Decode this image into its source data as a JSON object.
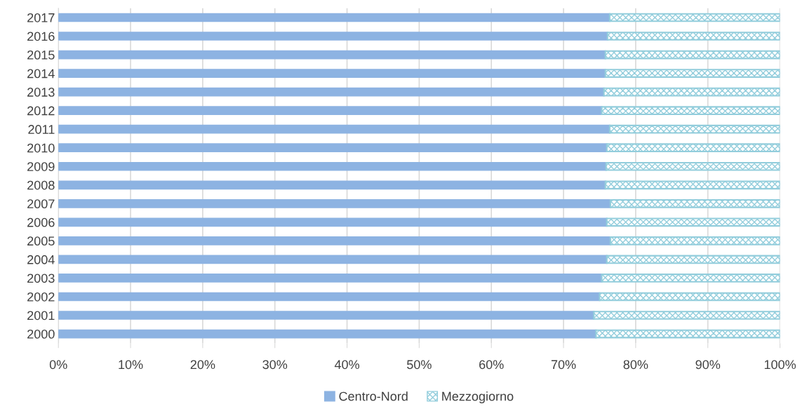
{
  "chart_data": {
    "type": "bar",
    "orientation": "horizontal",
    "stacked": true,
    "categories": [
      "2017",
      "2016",
      "2015",
      "2014",
      "2013",
      "2012",
      "2011",
      "2010",
      "2009",
      "2008",
      "2007",
      "2006",
      "2005",
      "2004",
      "2003",
      "2002",
      "2001",
      "2000"
    ],
    "series": [
      {
        "name": "Centro-Nord",
        "color": "#8db3e2",
        "values": [
          76.4,
          76.1,
          75.8,
          75.8,
          75.6,
          75.3,
          76.4,
          76.0,
          75.9,
          75.8,
          76.5,
          76.0,
          76.5,
          76.0,
          75.3,
          75.0,
          74.2,
          74.5
        ]
      },
      {
        "name": "Mezzogiorno",
        "color": "#92cddc",
        "values": [
          23.6,
          23.9,
          24.2,
          24.2,
          24.4,
          24.7,
          23.6,
          24.0,
          24.1,
          24.2,
          23.5,
          24.0,
          23.5,
          24.0,
          24.7,
          25.0,
          25.8,
          25.5
        ]
      }
    ],
    "xlim": [
      0,
      100
    ],
    "xticks": [
      {
        "value": 0,
        "label": "0%"
      },
      {
        "value": 10,
        "label": "10%"
      },
      {
        "value": 20,
        "label": "20%"
      },
      {
        "value": 30,
        "label": "30%"
      },
      {
        "value": 40,
        "label": "40%"
      },
      {
        "value": 50,
        "label": "50%"
      },
      {
        "value": 60,
        "label": "60%"
      },
      {
        "value": 70,
        "label": "70%"
      },
      {
        "value": 80,
        "label": "80%"
      },
      {
        "value": 90,
        "label": "90%"
      },
      {
        "value": 100,
        "label": "100%"
      }
    ],
    "grid": "x",
    "legend": "bottom"
  }
}
